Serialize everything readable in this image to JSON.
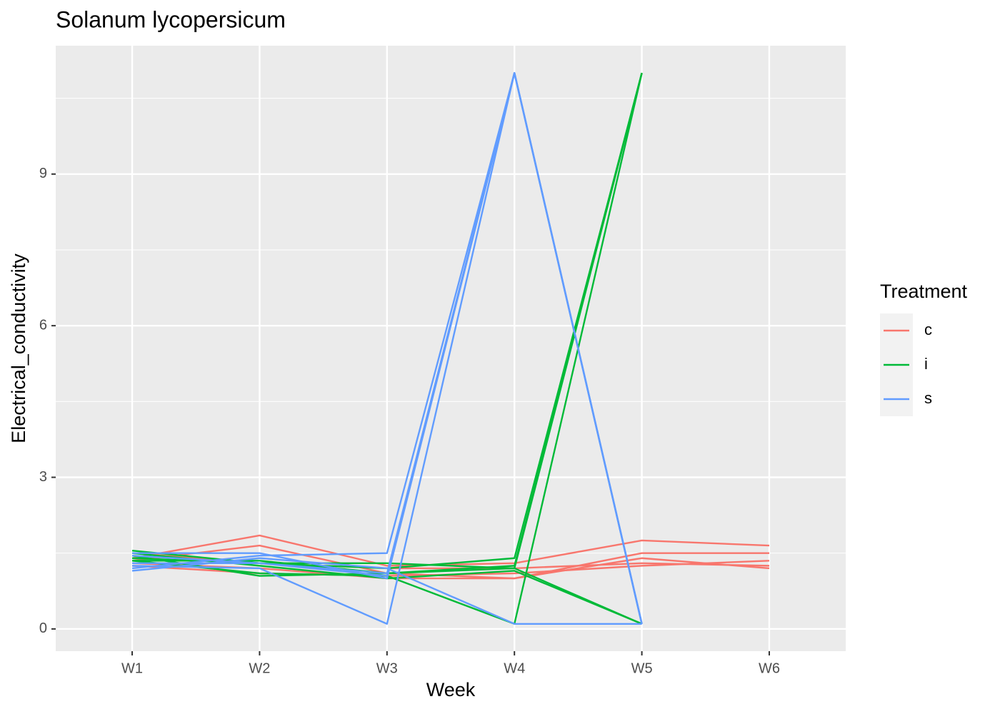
{
  "chart_data": {
    "type": "line",
    "title": "Solanum lycopersicum",
    "x_label": "Week",
    "y_label": "Electrical_conductivity",
    "categories": [
      "W1",
      "W2",
      "W3",
      "W4",
      "W5",
      "W6"
    ],
    "ylim": [
      -0.44,
      11.54
    ],
    "yticks": [
      0,
      3,
      6,
      9
    ],
    "grid": true,
    "legend_title": "Treatment",
    "legend": "right",
    "series": [
      {
        "name": "c",
        "color": "#f8766d",
        "values": [
          [
            1.4,
            1.85,
            1.25,
            1.3,
            1.75,
            1.65
          ],
          [
            1.35,
            1.65,
            1.1,
            1.0,
            1.5,
            1.5
          ],
          [
            1.3,
            1.2,
            1.0,
            1.0,
            1.4,
            1.2
          ],
          [
            1.25,
            1.1,
            1.05,
            1.1,
            1.25,
            1.35
          ],
          [
            1.5,
            1.3,
            1.2,
            1.2,
            1.3,
            1.25
          ]
        ]
      },
      {
        "name": "i",
        "color": "#00ba38",
        "values": [
          [
            1.55,
            1.3,
            1.2,
            1.4,
            11
          ],
          [
            1.45,
            1.05,
            1.1,
            1.25,
            11
          ],
          [
            1.4,
            1.3,
            1.3,
            1.2,
            11
          ],
          [
            1.35,
            1.1,
            1.05,
            0.1,
            11
          ],
          [
            1.35,
            1.35,
            1.1,
            1.2,
            0.1
          ],
          [
            1.5,
            1.25,
            1.0,
            1.15,
            0.1
          ]
        ]
      },
      {
        "name": "s",
        "color": "#619cff",
        "values": [
          [
            1.5,
            1.5,
            1.0,
            11,
            0.1
          ],
          [
            1.2,
            1.45,
            1.5,
            11,
            0.1
          ],
          [
            1.3,
            1.3,
            1.1,
            11,
            0.1
          ],
          [
            1.25,
            1.2,
            0.1,
            11,
            0.1
          ],
          [
            1.15,
            1.4,
            1.2,
            0.1,
            0.1
          ],
          [
            1.45,
            1.3,
            1.05,
            11,
            0.1
          ]
        ]
      }
    ]
  }
}
